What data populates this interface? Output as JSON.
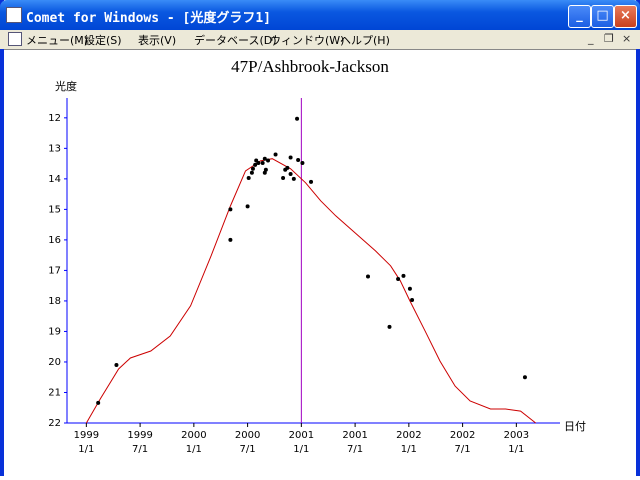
{
  "window": {
    "title": "Comet for Windows - [光度グラフ1]",
    "menu": [
      "メニュー(M)",
      "設定(S)",
      "表示(V)",
      "データベース(D)",
      "ウィンドウ(W)",
      "ヘルプ(H)"
    ]
  },
  "chart_data": {
    "type": "scatter",
    "title": "47P/Ashbrook-Jackson",
    "ylabel": "光度",
    "xlabel": "日付",
    "xlim": [
      1998.82,
      2003.22
    ],
    "ylim": [
      22,
      11.35
    ],
    "xticks": [
      {
        "value": 1999.0,
        "label": "1999\n1/1"
      },
      {
        "value": 1999.5,
        "label": "1999\n7/1"
      },
      {
        "value": 2000.0,
        "label": "2000\n1/1"
      },
      {
        "value": 2000.5,
        "label": "2000\n7/1"
      },
      {
        "value": 2001.0,
        "label": "2001\n1/1"
      },
      {
        "value": 2001.5,
        "label": "2001\n7/1"
      },
      {
        "value": 2002.0,
        "label": "2002\n1/1"
      },
      {
        "value": 2002.5,
        "label": "2002\n7/1"
      },
      {
        "value": 2003.0,
        "label": "2003\n1/1"
      }
    ],
    "yticks": [
      12,
      13,
      14,
      15,
      16,
      17,
      18,
      19,
      20,
      21,
      22
    ],
    "color": "#000000",
    "x": [
      1999.11,
      1999.28,
      2000.34,
      2000.34,
      2000.5,
      2000.51,
      2000.54,
      2000.55,
      2000.57,
      2000.58,
      2000.6,
      2000.64,
      2000.66,
      2000.66,
      2000.67,
      2000.69,
      2000.76,
      2000.83,
      2000.85,
      2000.87,
      2000.9,
      2000.9,
      2000.93,
      2000.96,
      2000.97,
      2001.01,
      2001.09,
      2001.62,
      2001.82,
      2001.9,
      2001.95,
      2002.01,
      2002.03,
      2003.08
    ],
    "values": [
      21.34,
      20.1,
      15.0,
      16.0,
      14.9,
      13.97,
      13.8,
      13.67,
      13.54,
      13.4,
      13.48,
      13.48,
      13.34,
      13.8,
      13.7,
      13.4,
      13.2,
      13.97,
      13.7,
      13.64,
      13.3,
      13.84,
      14.0,
      12.03,
      13.38,
      13.48,
      14.1,
      17.2,
      18.85,
      17.28,
      17.18,
      17.6,
      17.97,
      20.5
    ],
    "curve": {
      "color": "#cc0000",
      "x": [
        1999.0,
        1999.13,
        1999.3,
        1999.41,
        1999.6,
        1999.78,
        1999.97,
        2000.16,
        2000.34,
        2000.48,
        2000.62,
        2000.73,
        2000.9,
        2001.04,
        2001.18,
        2001.32,
        2001.5,
        2001.69,
        2001.83,
        2001.92,
        2002.01,
        2002.15,
        2002.29,
        2002.43,
        2002.57,
        2002.76,
        2002.9,
        2003.04,
        2003.18
      ],
      "values": [
        22.0,
        21.21,
        20.23,
        19.87,
        19.64,
        19.15,
        18.16,
        16.52,
        14.89,
        13.74,
        13.41,
        13.34,
        13.67,
        14.13,
        14.72,
        15.21,
        15.77,
        16.36,
        16.85,
        17.34,
        18.0,
        18.98,
        19.97,
        20.79,
        21.28,
        21.54,
        21.54,
        21.61,
        22.0
      ]
    },
    "marker_x": 2001.0,
    "marker_color": "#a000c0",
    "axis_color": "#0000ff"
  }
}
